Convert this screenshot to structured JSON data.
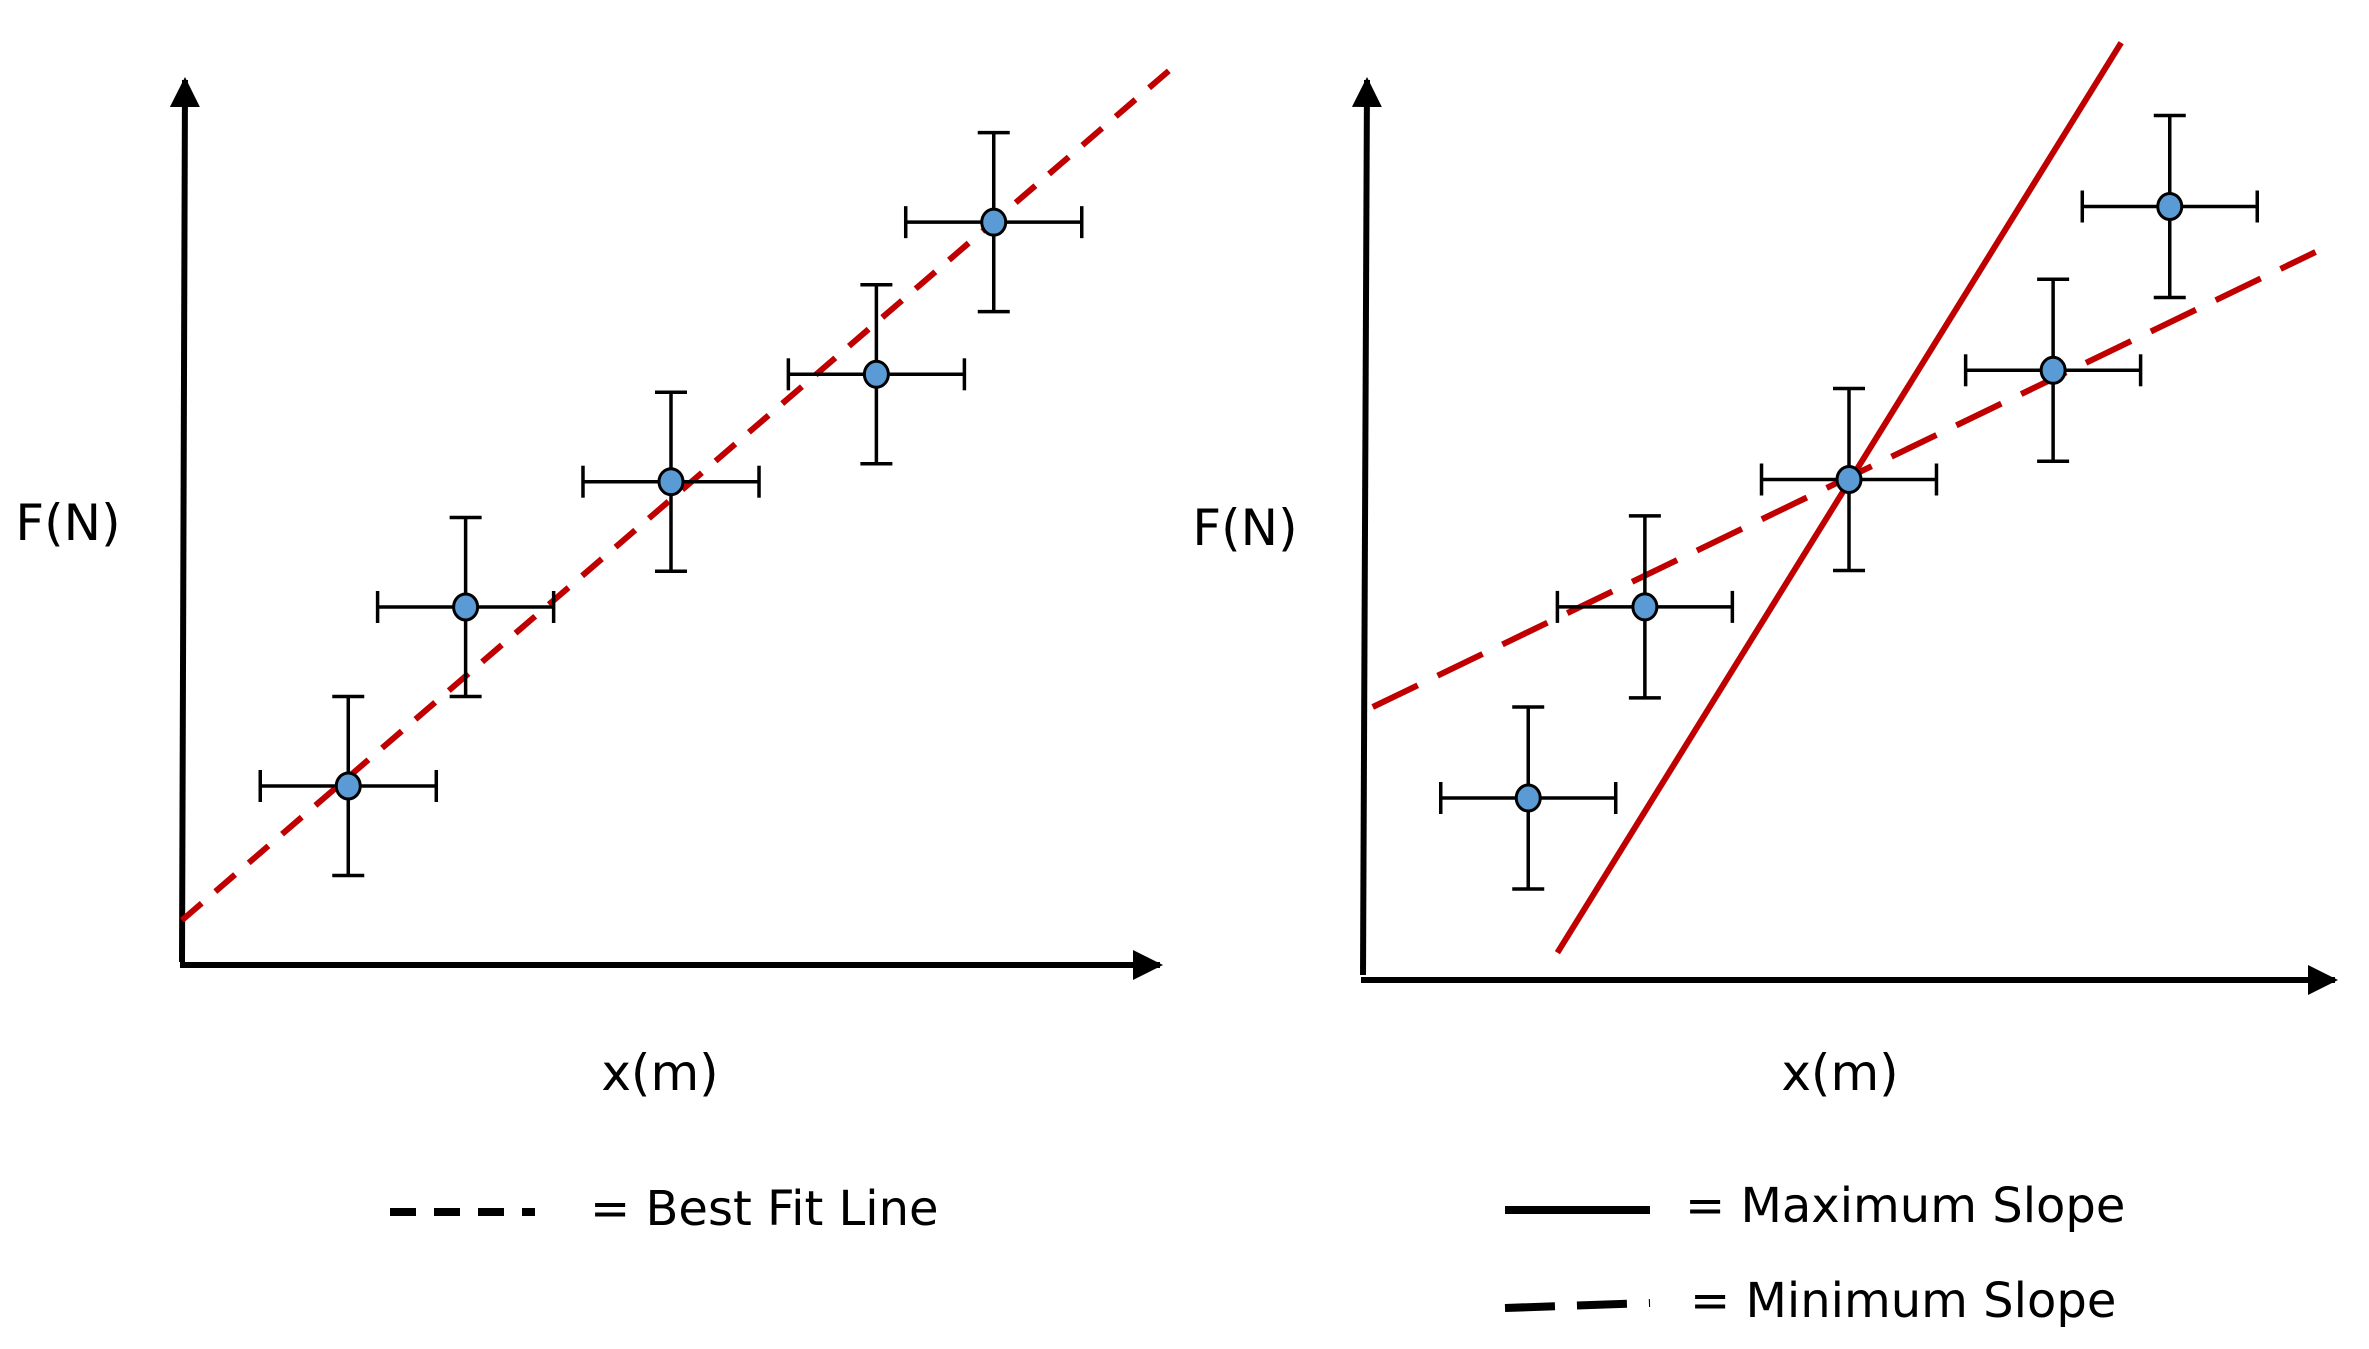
{
  "chart_data": [
    {
      "type": "scatter",
      "panel": "left",
      "ylabel": "F(N)",
      "xlabel": "x(m)",
      "xlim": [
        0,
        10
      ],
      "ylim": [
        0,
        10
      ],
      "points": [
        {
          "x": 1.7,
          "y": 2.0,
          "xerr": 0.9,
          "yerr": 1.0
        },
        {
          "x": 2.9,
          "y": 4.0,
          "xerr": 0.9,
          "yerr": 1.0
        },
        {
          "x": 5.0,
          "y": 5.4,
          "xerr": 0.9,
          "yerr": 1.0
        },
        {
          "x": 7.1,
          "y": 6.6,
          "xerr": 0.9,
          "yerr": 1.0
        },
        {
          "x": 8.3,
          "y": 8.3,
          "xerr": 0.9,
          "yerr": 1.0
        }
      ],
      "lines": [
        {
          "label": "Best Fit Line",
          "style": "dotted",
          "x0": 0,
          "y0": 0.5,
          "x1": 10.1,
          "y1": 10.0
        }
      ],
      "legend": [
        {
          "style": "dotted",
          "text": "=  Best Fit Line"
        }
      ],
      "colors": {
        "point": "#5b9bd5",
        "fit_line": "#c00000"
      }
    },
    {
      "type": "scatter",
      "panel": "right",
      "ylabel": "F(N)",
      "xlabel": "x(m)",
      "xlim": [
        0,
        10
      ],
      "ylim": [
        0,
        10
      ],
      "points": [
        {
          "x": 1.7,
          "y": 2.0,
          "xerr": 0.9,
          "yerr": 1.0
        },
        {
          "x": 2.9,
          "y": 4.1,
          "xerr": 0.9,
          "yerr": 1.0
        },
        {
          "x": 5.0,
          "y": 5.5,
          "xerr": 0.9,
          "yerr": 1.0
        },
        {
          "x": 7.1,
          "y": 6.7,
          "xerr": 0.9,
          "yerr": 1.0
        },
        {
          "x": 8.3,
          "y": 8.5,
          "xerr": 0.9,
          "yerr": 1.0
        }
      ],
      "lines": [
        {
          "label": "Maximum Slope",
          "style": "solid",
          "x0": 2.0,
          "y0": 0.3,
          "x1": 7.8,
          "y1": 10.3
        },
        {
          "label": "Minimum Slope",
          "style": "dashed",
          "x0": 0.1,
          "y0": 3.0,
          "x1": 9.8,
          "y1": 8.0
        }
      ],
      "legend": [
        {
          "style": "solid",
          "text": "=  Maximum Slope"
        },
        {
          "style": "dashed",
          "text": "=  Minimum Slope"
        }
      ],
      "colors": {
        "point": "#5b9bd5",
        "fit_line": "#c00000"
      }
    }
  ]
}
